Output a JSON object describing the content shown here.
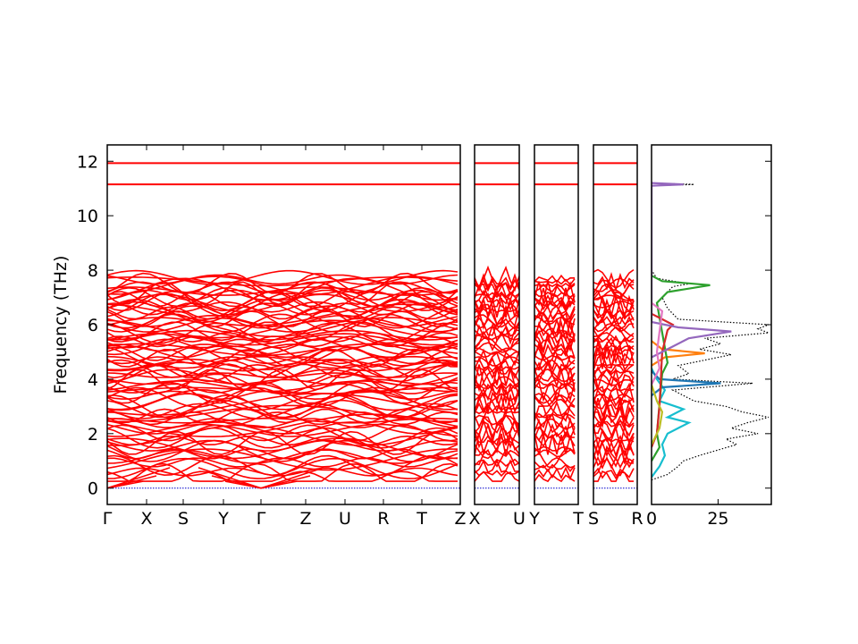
{
  "chart_data": {
    "type": "line",
    "ylabel": "Frequency (THz)",
    "ylim": [
      -0.6,
      12.6
    ],
    "y_ticks": [
      0,
      2,
      4,
      6,
      8,
      10,
      12
    ],
    "grid": false,
    "colors": {
      "bands": "#ff0000",
      "zero_line": "#0000cc",
      "total_dos": "#000000",
      "frame": "#000000"
    },
    "band_panels": [
      {
        "x_tick_labels": [
          "Γ",
          "X",
          "S",
          "Y",
          "Γ",
          "Z",
          "U",
          "R",
          "T",
          "Z"
        ]
      },
      {
        "x_tick_labels": [
          "X",
          "U"
        ]
      },
      {
        "x_tick_labels": [
          "Y",
          "T"
        ]
      },
      {
        "x_tick_labels": [
          "S",
          "R"
        ]
      }
    ],
    "band_summary": {
      "flat_bands_thz": [
        11.93,
        11.15
      ],
      "dense_region_thz": [
        0.0,
        7.8
      ],
      "acoustic_zero_points": [
        "Γ"
      ]
    },
    "dos_panel": {
      "x_tick_labels": [
        "0",
        "25"
      ],
      "xlim": [
        0,
        45
      ],
      "series": [
        {
          "color": "#000000",
          "style": "dotted",
          "values": [
            [
              0.3,
              0
            ],
            [
              0.5,
              6
            ],
            [
              0.8,
              10
            ],
            [
              1.0,
              12
            ],
            [
              1.2,
              18
            ],
            [
              1.4,
              25
            ],
            [
              1.6,
              32
            ],
            [
              1.8,
              28
            ],
            [
              2.0,
              40
            ],
            [
              2.2,
              30
            ],
            [
              2.4,
              36
            ],
            [
              2.6,
              44
            ],
            [
              2.8,
              34
            ],
            [
              3.0,
              28
            ],
            [
              3.2,
              16
            ],
            [
              3.4,
              12
            ],
            [
              3.6,
              8
            ],
            [
              3.85,
              38
            ],
            [
              4.0,
              8
            ],
            [
              4.2,
              14
            ],
            [
              4.5,
              10
            ],
            [
              4.7,
              20
            ],
            [
              4.9,
              30
            ],
            [
              5.1,
              18
            ],
            [
              5.3,
              26
            ],
            [
              5.5,
              20
            ],
            [
              5.7,
              44
            ],
            [
              5.85,
              40
            ],
            [
              6.0,
              44
            ],
            [
              6.2,
              10
            ],
            [
              6.4,
              8
            ],
            [
              6.6,
              6
            ],
            [
              7.0,
              4
            ],
            [
              7.4,
              8
            ],
            [
              7.5,
              14
            ],
            [
              7.7,
              2
            ],
            [
              8.0,
              0
            ],
            [
              11.1,
              0
            ],
            [
              11.15,
              16
            ],
            [
              11.2,
              0
            ]
          ]
        },
        {
          "color": "#17becf",
          "style": "solid",
          "values": [
            [
              0.4,
              0
            ],
            [
              0.8,
              3
            ],
            [
              1.2,
              5
            ],
            [
              1.6,
              4
            ],
            [
              2.0,
              6
            ],
            [
              2.4,
              14
            ],
            [
              2.6,
              6
            ],
            [
              2.9,
              12
            ],
            [
              3.2,
              3
            ],
            [
              3.6,
              5
            ],
            [
              4.0,
              2
            ],
            [
              4.4,
              0
            ]
          ]
        },
        {
          "color": "#1f77b4",
          "style": "solid",
          "values": [
            [
              3.4,
              0
            ],
            [
              3.7,
              4
            ],
            [
              3.85,
              26
            ],
            [
              4.0,
              3
            ],
            [
              4.3,
              0
            ]
          ]
        },
        {
          "color": "#ff7f0e",
          "style": "solid",
          "values": [
            [
              4.5,
              0
            ],
            [
              4.8,
              5
            ],
            [
              4.95,
              20
            ],
            [
              5.1,
              4
            ],
            [
              5.4,
              0
            ]
          ]
        },
        {
          "color": "#2ca02c",
          "style": "solid",
          "values": [
            [
              1.0,
              0
            ],
            [
              1.5,
              3
            ],
            [
              2.0,
              2
            ],
            [
              4.2,
              4
            ],
            [
              4.6,
              6
            ],
            [
              6.8,
              2
            ],
            [
              7.2,
              6
            ],
            [
              7.45,
              22
            ],
            [
              7.6,
              4
            ],
            [
              7.8,
              0
            ]
          ]
        },
        {
          "color": "#d62728",
          "style": "solid",
          "values": [
            [
              1.5,
              0
            ],
            [
              2.0,
              2
            ],
            [
              3.0,
              3
            ],
            [
              5.0,
              4
            ],
            [
              5.8,
              6
            ],
            [
              6.0,
              8
            ],
            [
              6.2,
              4
            ],
            [
              6.4,
              0
            ]
          ]
        },
        {
          "color": "#9467bd",
          "style": "solid",
          "values": [
            [
              4.8,
              0
            ],
            [
              5.2,
              8
            ],
            [
              5.5,
              14
            ],
            [
              5.75,
              30
            ],
            [
              5.9,
              10
            ],
            [
              6.1,
              0
            ],
            [
              11.1,
              0
            ],
            [
              11.15,
              12
            ],
            [
              11.2,
              0
            ]
          ]
        },
        {
          "color": "#bcbd22",
          "style": "solid",
          "values": [
            [
              1.6,
              0
            ],
            [
              2.2,
              3
            ],
            [
              2.8,
              4
            ],
            [
              3.2,
              2
            ],
            [
              3.8,
              0
            ]
          ]
        },
        {
          "color": "#e377c2",
          "style": "solid",
          "values": [
            [
              3.8,
              0
            ],
            [
              4.4,
              3
            ],
            [
              5.0,
              2
            ],
            [
              6.5,
              4
            ],
            [
              6.8,
              0
            ]
          ]
        }
      ]
    }
  }
}
